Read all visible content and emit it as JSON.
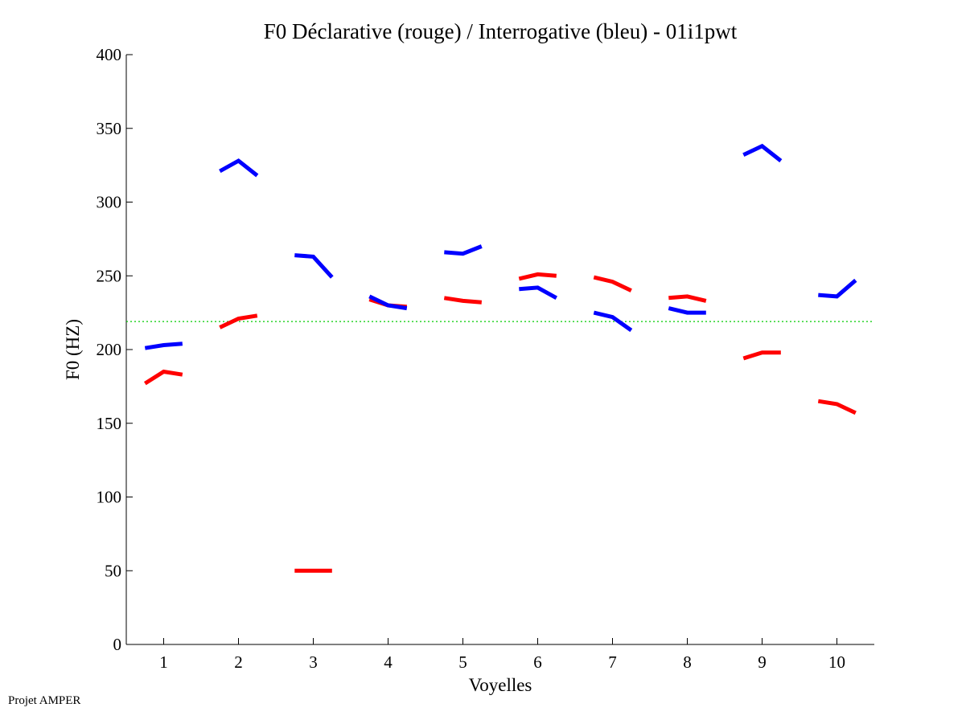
{
  "footer": "Projet AMPER",
  "chart_data": {
    "type": "line",
    "title": "F0 Déclarative (rouge) / Interrogative (bleu) - 01i1pwt",
    "xlabel": "Voyelles",
    "ylabel": "F0 (HZ)",
    "xlim": [
      0.5,
      10.5
    ],
    "ylim": [
      0,
      400
    ],
    "xticks": [
      1,
      2,
      3,
      4,
      5,
      6,
      7,
      8,
      9,
      10
    ],
    "yticks": [
      0,
      50,
      100,
      150,
      200,
      250,
      300,
      350,
      400
    ],
    "reference_line": {
      "y": 219,
      "color": "#00cc00",
      "style": "dotted"
    },
    "series": [
      {
        "name": "Déclarative",
        "color": "#ff0000",
        "segments": [
          {
            "vowel": 1,
            "points": [
              [
                0.75,
                177
              ],
              [
                1.0,
                185
              ],
              [
                1.25,
                183
              ]
            ]
          },
          {
            "vowel": 2,
            "points": [
              [
                1.75,
                215
              ],
              [
                2.0,
                221
              ],
              [
                2.25,
                223
              ]
            ]
          },
          {
            "vowel": 3,
            "points": [
              [
                2.75,
                50
              ],
              [
                3.0,
                50
              ],
              [
                3.25,
                50
              ]
            ]
          },
          {
            "vowel": 4,
            "points": [
              [
                3.75,
                234
              ],
              [
                4.0,
                230
              ],
              [
                4.25,
                229
              ]
            ]
          },
          {
            "vowel": 5,
            "points": [
              [
                4.75,
                235
              ],
              [
                5.0,
                233
              ],
              [
                5.25,
                232
              ]
            ]
          },
          {
            "vowel": 6,
            "points": [
              [
                5.75,
                248
              ],
              [
                6.0,
                251
              ],
              [
                6.25,
                250
              ]
            ]
          },
          {
            "vowel": 7,
            "points": [
              [
                6.75,
                249
              ],
              [
                7.0,
                246
              ],
              [
                7.25,
                240
              ]
            ]
          },
          {
            "vowel": 8,
            "points": [
              [
                7.75,
                235
              ],
              [
                8.0,
                236
              ],
              [
                8.25,
                233
              ]
            ]
          },
          {
            "vowel": 9,
            "points": [
              [
                8.75,
                194
              ],
              [
                9.0,
                198
              ],
              [
                9.25,
                198
              ]
            ]
          },
          {
            "vowel": 10,
            "points": [
              [
                9.75,
                165
              ],
              [
                10.0,
                163
              ],
              [
                10.25,
                157
              ]
            ]
          }
        ]
      },
      {
        "name": "Interrogative",
        "color": "#0000ff",
        "segments": [
          {
            "vowel": 1,
            "points": [
              [
                0.75,
                201
              ],
              [
                1.0,
                203
              ],
              [
                1.25,
                204
              ]
            ]
          },
          {
            "vowel": 2,
            "points": [
              [
                1.75,
                321
              ],
              [
                2.0,
                328
              ],
              [
                2.25,
                318
              ]
            ]
          },
          {
            "vowel": 3,
            "points": [
              [
                2.75,
                264
              ],
              [
                3.0,
                263
              ],
              [
                3.25,
                249
              ]
            ]
          },
          {
            "vowel": 4,
            "points": [
              [
                3.75,
                236
              ],
              [
                4.0,
                230
              ],
              [
                4.25,
                228
              ]
            ]
          },
          {
            "vowel": 5,
            "points": [
              [
                4.75,
                266
              ],
              [
                5.0,
                265
              ],
              [
                5.25,
                270
              ]
            ]
          },
          {
            "vowel": 6,
            "points": [
              [
                5.75,
                241
              ],
              [
                6.0,
                242
              ],
              [
                6.25,
                235
              ]
            ]
          },
          {
            "vowel": 7,
            "points": [
              [
                6.75,
                225
              ],
              [
                7.0,
                222
              ],
              [
                7.25,
                213
              ]
            ]
          },
          {
            "vowel": 8,
            "points": [
              [
                7.75,
                228
              ],
              [
                8.0,
                225
              ],
              [
                8.25,
                225
              ]
            ]
          },
          {
            "vowel": 9,
            "points": [
              [
                8.75,
                332
              ],
              [
                9.0,
                338
              ],
              [
                9.25,
                328
              ]
            ]
          },
          {
            "vowel": 10,
            "points": [
              [
                9.75,
                237
              ],
              [
                10.0,
                236
              ],
              [
                10.25,
                247
              ]
            ]
          }
        ]
      }
    ]
  }
}
